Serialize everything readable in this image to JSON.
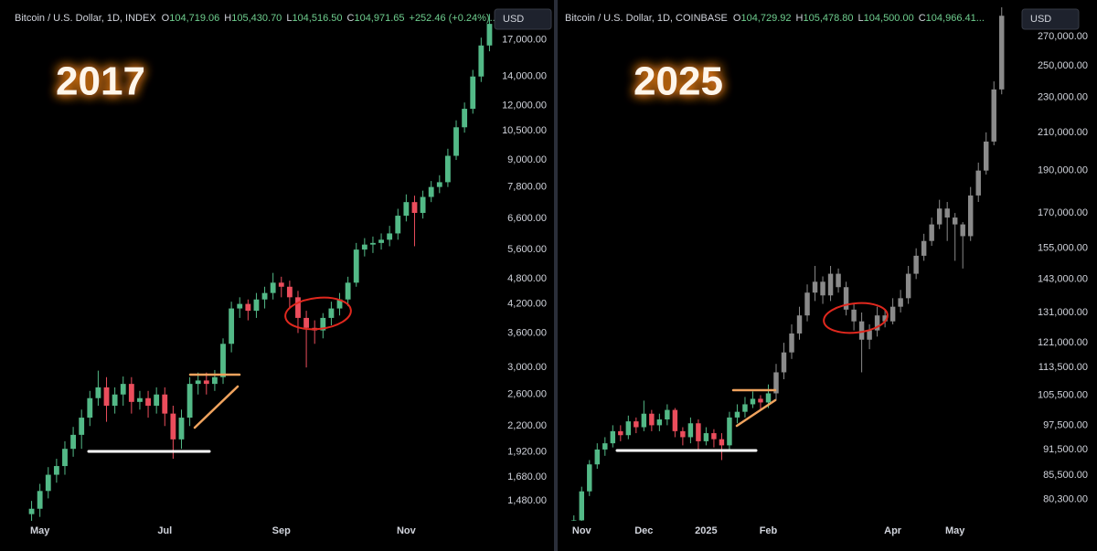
{
  "chart_data": [
    {
      "type": "candlestick",
      "log_scale": true,
      "currency": "USD",
      "annotation": "2017",
      "header": {
        "symbol": "Bitcoin / U.S. Dollar, 1D, INDEX",
        "ohlc": [
          {
            "key": "O",
            "value": "104,719.06"
          },
          {
            "key": "H",
            "value": "105,430.70"
          },
          {
            "key": "L",
            "value": "104,516.50"
          },
          {
            "key": "C",
            "value": "104,971.65"
          }
        ],
        "change": "+252.46 (+0.24%)..."
      },
      "ylim": [
        1300,
        20000
      ],
      "yticks": [
        {
          "value": 1480,
          "label": "1,480.00"
        },
        {
          "value": 1680,
          "label": "1,680.00"
        },
        {
          "value": 1920,
          "label": "1,920.00"
        },
        {
          "value": 2200,
          "label": "2,200.00"
        },
        {
          "value": 2600,
          "label": "2,600.00"
        },
        {
          "value": 3000,
          "label": "3,000.00"
        },
        {
          "value": 3600,
          "label": "3,600.00"
        },
        {
          "value": 4200,
          "label": "4,200.00"
        },
        {
          "value": 4800,
          "label": "4,800.00"
        },
        {
          "value": 5600,
          "label": "5,600.00"
        },
        {
          "value": 6600,
          "label": "6,600.00"
        },
        {
          "value": 7800,
          "label": "7,800.00"
        },
        {
          "value": 9000,
          "label": "9,000.00"
        },
        {
          "value": 10500,
          "label": "10,500.00"
        },
        {
          "value": 12000,
          "label": "12,000.00"
        },
        {
          "value": 14000,
          "label": "14,000.00"
        },
        {
          "value": 17000,
          "label": "17,000.00"
        }
      ],
      "categories": [
        null,
        "May",
        null,
        null,
        null,
        null,
        null,
        null,
        null,
        null,
        null,
        null,
        null,
        null,
        null,
        null,
        "Jul",
        null,
        null,
        null,
        null,
        null,
        null,
        null,
        null,
        null,
        null,
        null,
        null,
        null,
        "Sep",
        null,
        null,
        null,
        null,
        null,
        null,
        null,
        null,
        null,
        null,
        null,
        null,
        null,
        null,
        "Nov",
        null,
        null,
        null,
        null,
        null,
        null,
        null,
        null,
        null,
        null
      ],
      "series": [
        {
          "up_color": "#53b987",
          "down_color": "#eb4d5c",
          "open": [
            1380,
            1420,
            1560,
            1700,
            1780,
            1950,
            2100,
            2300,
            2550,
            2700,
            2450,
            2600,
            2750,
            2500,
            2550,
            2450,
            2600,
            2350,
            2050,
            2300,
            2750,
            2800,
            2750,
            2850,
            3400,
            4100,
            4200,
            4050,
            4300,
            4450,
            4700,
            4600,
            4350,
            3900,
            3700,
            3650,
            3900,
            4100,
            4300,
            4700,
            5600,
            5750,
            5800,
            5900,
            6100,
            6700,
            7200,
            6800,
            7400,
            7800,
            8000,
            9200,
            10700,
            11800,
            14000,
            16500
          ],
          "high": [
            1480,
            1620,
            1770,
            1850,
            2030,
            2190,
            2400,
            2650,
            2950,
            2850,
            2700,
            2860,
            2850,
            2650,
            2650,
            2700,
            2700,
            2450,
            2400,
            2850,
            2920,
            2920,
            2960,
            3500,
            4250,
            4350,
            4300,
            4450,
            4600,
            4950,
            4850,
            4750,
            4500,
            4050,
            3850,
            4000,
            4250,
            4450,
            4850,
            5800,
            5950,
            6000,
            6100,
            6350,
            6950,
            7500,
            7450,
            7650,
            8050,
            8300,
            9550,
            11100,
            12200,
            14500,
            17200,
            19500
          ],
          "low": [
            1320,
            1360,
            1500,
            1630,
            1700,
            1870,
            1950,
            2200,
            2450,
            2250,
            2350,
            2450,
            2350,
            2400,
            2300,
            2350,
            2200,
            1850,
            1950,
            2200,
            2600,
            2600,
            2650,
            2750,
            3250,
            3900,
            3850,
            3900,
            4100,
            4300,
            4350,
            4100,
            3600,
            3000,
            3400,
            3500,
            3750,
            3950,
            4150,
            4600,
            5400,
            5500,
            5600,
            5700,
            5900,
            6500,
            5700,
            6600,
            7200,
            7550,
            7800,
            9000,
            10400,
            11500,
            13600,
            16000
          ],
          "close": [
            1420,
            1560,
            1700,
            1780,
            1950,
            2100,
            2300,
            2550,
            2700,
            2450,
            2600,
            2750,
            2500,
            2550,
            2450,
            2600,
            2350,
            2050,
            2300,
            2750,
            2800,
            2750,
            2850,
            3400,
            4100,
            4200,
            4050,
            4300,
            4450,
            4700,
            4600,
            4350,
            3900,
            3700,
            3650,
            3900,
            4100,
            4300,
            4700,
            5600,
            5750,
            5800,
            5900,
            6100,
            6700,
            7200,
            6800,
            7400,
            7800,
            8000,
            9200,
            10700,
            11800,
            14000,
            16500,
            18500
          ]
        }
      ]
    },
    {
      "type": "candlestick",
      "log_scale": true,
      "currency": "USD",
      "annotation": "2025",
      "header": {
        "symbol": "Bitcoin / U.S. Dollar, 1D, COINBASE",
        "ohlc": [
          {
            "key": "O",
            "value": "104,729.92"
          },
          {
            "key": "H",
            "value": "105,478.80"
          },
          {
            "key": "L",
            "value": "104,500.00"
          },
          {
            "key": "C",
            "value": "104,966.41..."
          }
        ]
      },
      "ylim": [
        75000,
        290000
      ],
      "yticks": [
        {
          "value": 80300,
          "label": "80,300.00"
        },
        {
          "value": 85500,
          "label": "85,500.00"
        },
        {
          "value": 91500,
          "label": "91,500.00"
        },
        {
          "value": 97500,
          "label": "97,500.00"
        },
        {
          "value": 105500,
          "label": "105,500.00"
        },
        {
          "value": 113500,
          "label": "113,500.00"
        },
        {
          "value": 121000,
          "label": "121,000.00"
        },
        {
          "value": 131000,
          "label": "131,000.00"
        },
        {
          "value": 143000,
          "label": "143,000.00"
        },
        {
          "value": 155000,
          "label": "155,000.00"
        },
        {
          "value": 170000,
          "label": "170,000.00"
        },
        {
          "value": 190000,
          "label": "190,000.00"
        },
        {
          "value": 210000,
          "label": "210,000.00"
        },
        {
          "value": 230000,
          "label": "230,000.00"
        },
        {
          "value": 250000,
          "label": "250,000.00"
        },
        {
          "value": 270000,
          "label": "270,000.00"
        }
      ],
      "categories": [
        null,
        null,
        "Nov",
        null,
        null,
        null,
        null,
        null,
        null,
        null,
        "Dec",
        null,
        null,
        null,
        null,
        null,
        null,
        null,
        "2025",
        null,
        null,
        null,
        null,
        null,
        null,
        null,
        "Feb",
        null,
        null,
        null,
        null,
        null,
        null,
        null,
        null,
        null,
        null,
        null,
        null,
        null,
        null,
        null,
        "Apr",
        null,
        null,
        null,
        null,
        null,
        null,
        null,
        "May",
        null,
        null,
        null,
        null,
        null,
        null
      ],
      "series": [
        {
          "up_color": "#53b987",
          "down_color": "#eb4d5c",
          "open": [
            69000,
            70500,
            76000,
            82000,
            88000,
            91500,
            93000,
            96000,
            95000,
            98500,
            97000,
            100500,
            97500,
            99000,
            101500,
            96000,
            94500,
            98000,
            93500,
            95500,
            94000,
            92500,
            99500,
            101000,
            103000,
            104500,
            103500,
            null,
            null,
            null,
            null,
            null,
            null,
            null,
            null,
            null,
            null,
            null,
            null,
            null,
            null,
            null,
            null,
            null,
            null,
            null,
            null,
            null,
            null,
            null,
            null,
            null,
            null,
            null,
            null,
            null,
            null
          ],
          "high": [
            71500,
            77000,
            83000,
            89000,
            93000,
            94500,
            97500,
            97500,
            100000,
            99500,
            104000,
            101500,
            100500,
            103000,
            102000,
            97000,
            99500,
            99000,
            97000,
            96500,
            95500,
            101000,
            103000,
            105000,
            106500,
            105500,
            108500,
            null,
            null,
            null,
            null,
            null,
            null,
            null,
            null,
            null,
            null,
            null,
            null,
            null,
            null,
            null,
            null,
            null,
            null,
            null,
            null,
            null,
            null,
            null,
            null,
            null,
            null,
            null,
            null,
            null,
            null
          ],
          "low": [
            68000,
            68500,
            75000,
            81000,
            87000,
            90000,
            92000,
            93500,
            94000,
            95500,
            96000,
            96000,
            96000,
            97500,
            94500,
            92500,
            93000,
            91000,
            92500,
            92000,
            89000,
            91500,
            98000,
            99500,
            102000,
            101500,
            102000,
            null,
            null,
            null,
            null,
            null,
            null,
            null,
            null,
            null,
            null,
            null,
            null,
            null,
            null,
            null,
            null,
            null,
            null,
            null,
            null,
            null,
            null,
            null,
            null,
            null,
            null,
            null,
            null,
            null,
            null
          ],
          "close": [
            70500,
            76000,
            82000,
            88000,
            91500,
            93000,
            96000,
            95000,
            98500,
            97000,
            100500,
            97500,
            99000,
            101500,
            96000,
            94500,
            98000,
            93500,
            95500,
            94000,
            92500,
            99500,
            101000,
            103000,
            104500,
            103500,
            106000,
            null,
            null,
            null,
            null,
            null,
            null,
            null,
            null,
            null,
            null,
            null,
            null,
            null,
            null,
            null,
            null,
            null,
            null,
            null,
            null,
            null,
            null,
            null,
            null,
            null,
            null,
            null,
            null,
            null,
            null
          ]
        },
        {
          "color": "#8a8a8a",
          "open": [
            null,
            null,
            null,
            null,
            null,
            null,
            null,
            null,
            null,
            null,
            null,
            null,
            null,
            null,
            null,
            null,
            null,
            null,
            null,
            null,
            null,
            null,
            null,
            null,
            null,
            null,
            null,
            106000,
            112000,
            118000,
            124000,
            130000,
            138000,
            142000,
            137000,
            145000,
            140000,
            132000,
            128000,
            122000,
            125000,
            130000,
            128000,
            133000,
            136000,
            145000,
            152000,
            158000,
            165000,
            172000,
            168000,
            165000,
            160000,
            178000,
            190000,
            205000,
            235000
          ],
          "high": [
            null,
            null,
            null,
            null,
            null,
            null,
            null,
            null,
            null,
            null,
            null,
            null,
            null,
            null,
            null,
            null,
            null,
            null,
            null,
            null,
            null,
            null,
            null,
            null,
            null,
            null,
            null,
            114500,
            121000,
            127000,
            133000,
            141000,
            148000,
            144000,
            148000,
            147000,
            142000,
            134000,
            131000,
            127000,
            133000,
            132000,
            136000,
            139000,
            148000,
            155000,
            161000,
            168000,
            176000,
            175000,
            170000,
            166000,
            182000,
            194000,
            210000,
            240000,
            295000
          ],
          "low": [
            null,
            null,
            null,
            null,
            null,
            null,
            null,
            null,
            null,
            null,
            null,
            null,
            null,
            null,
            null,
            null,
            null,
            null,
            null,
            null,
            null,
            null,
            null,
            null,
            null,
            null,
            null,
            104000,
            110000,
            116000,
            122000,
            128000,
            135000,
            134000,
            135000,
            138000,
            130000,
            125000,
            112000,
            119000,
            123000,
            126000,
            127000,
            131000,
            134000,
            143000,
            150000,
            156000,
            163000,
            158000,
            150000,
            147000,
            158000,
            175000,
            188000,
            203000,
            232000
          ],
          "close": [
            null,
            null,
            null,
            null,
            null,
            null,
            null,
            null,
            null,
            null,
            null,
            null,
            null,
            null,
            null,
            null,
            null,
            null,
            null,
            null,
            null,
            null,
            null,
            null,
            null,
            null,
            null,
            112000,
            118000,
            124000,
            130000,
            138000,
            142000,
            137000,
            145000,
            140000,
            132000,
            128000,
            122000,
            125000,
            130000,
            128000,
            133000,
            136000,
            145000,
            152000,
            158000,
            165000,
            172000,
            168000,
            165000,
            160000,
            178000,
            190000,
            205000,
            235000,
            285000
          ]
        }
      ]
    }
  ]
}
